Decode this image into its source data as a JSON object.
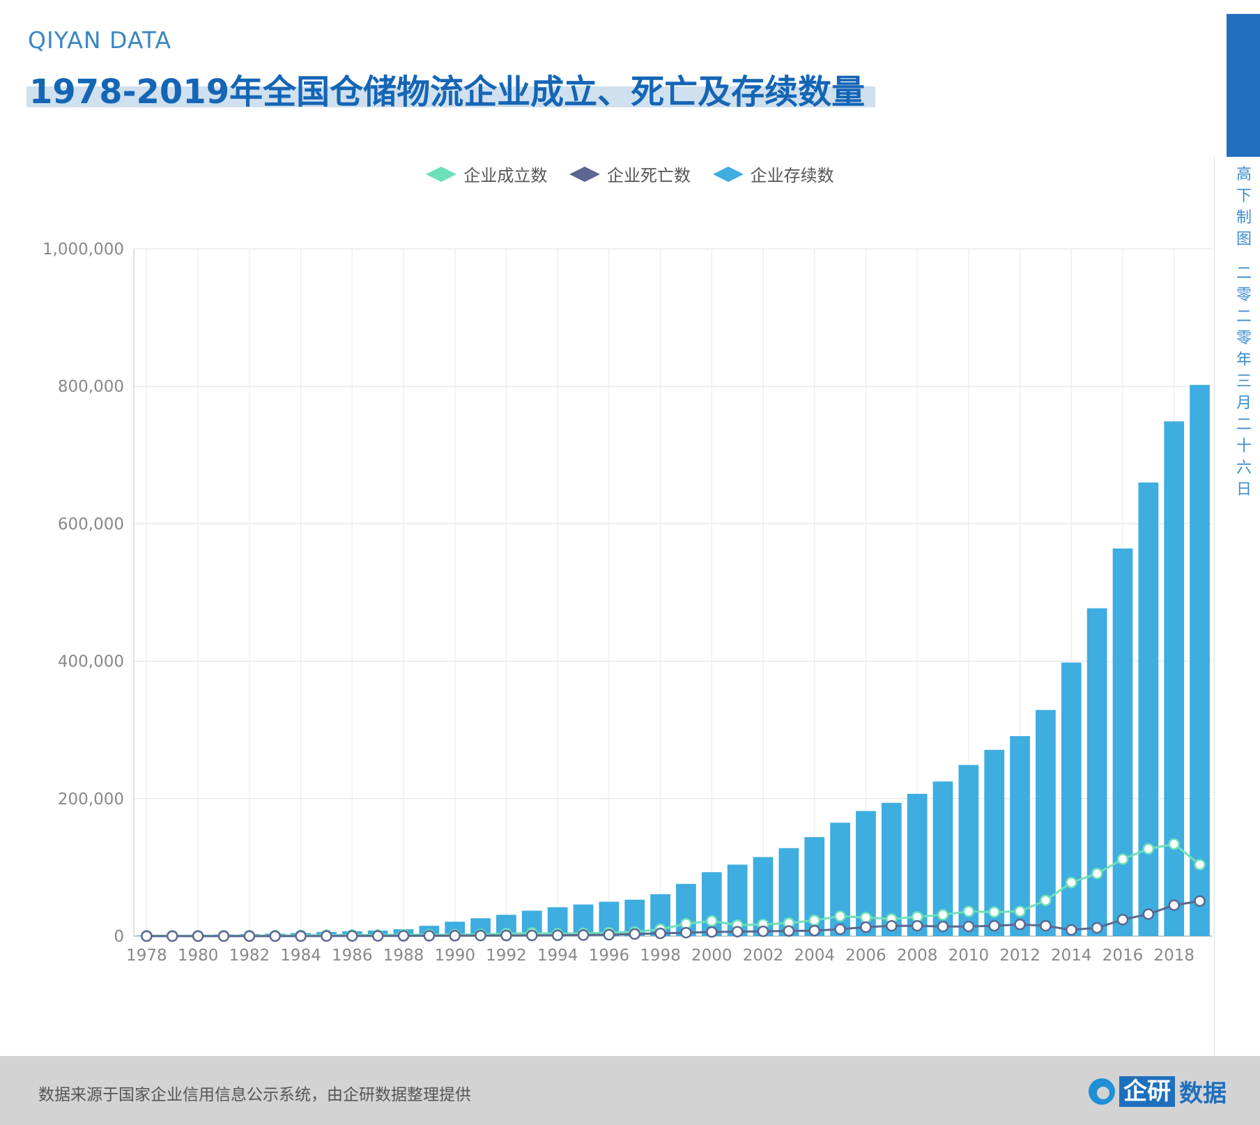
{
  "header": {
    "brand": "QIYAN DATA",
    "title": "1978-2019年全国仓储物流企业成立、死亡及存续数量"
  },
  "side_note": [
    "高",
    "下",
    "制",
    "图",
    "",
    "二",
    "零",
    "二",
    "零",
    "年",
    "三",
    "月",
    "二",
    "十",
    "六",
    "日"
  ],
  "footer": {
    "source": "数据来源于国家企业信用信息公示系统，由企研数据整理提供",
    "logo_box": "企研",
    "logo_text": "数据"
  },
  "colors": {
    "founded": "#6ee0b8",
    "dissolved": "#5b6790",
    "surviving": "#3eade0"
  },
  "chart_data": {
    "type": "bar",
    "title": "1978-2019年全国仓储物流企业成立、死亡及存续数量",
    "xlabel": "",
    "ylabel": "",
    "ylim": [
      0,
      1000000
    ],
    "yticks": [
      0,
      200000,
      400000,
      600000,
      800000,
      1000000
    ],
    "ytick_labels": [
      "0",
      "200,000",
      "400,000",
      "600,000",
      "800,000",
      "1,000,000"
    ],
    "xtick_labels": [
      "1978",
      "1980",
      "1982",
      "1984",
      "1986",
      "1988",
      "1990",
      "1992",
      "1994",
      "1996",
      "1998",
      "2000",
      "2002",
      "2004",
      "2006",
      "2008",
      "2010",
      "2012",
      "2014",
      "2016",
      "2018"
    ],
    "grid": true,
    "legend_position": "top-center",
    "categories": [
      1978,
      1979,
      1980,
      1981,
      1982,
      1983,
      1984,
      1985,
      1986,
      1987,
      1988,
      1989,
      1990,
      1991,
      1992,
      1993,
      1994,
      1995,
      1996,
      1997,
      1998,
      1999,
      2000,
      2001,
      2002,
      2003,
      2004,
      2005,
      2006,
      2007,
      2008,
      2009,
      2010,
      2011,
      2012,
      2013,
      2014,
      2015,
      2016,
      2017,
      2018,
      2019
    ],
    "series": [
      {
        "name": "企业成立数",
        "type": "line",
        "values": [
          500,
          400,
          400,
          500,
          600,
          700,
          1000,
          1500,
          1600,
          1500,
          1900,
          2000,
          2100,
          2400,
          3500,
          4500,
          3500,
          4000,
          5000,
          6000,
          10000,
          18000,
          22000,
          16000,
          17000,
          19000,
          23000,
          29000,
          27000,
          25000,
          28000,
          31000,
          36000,
          35000,
          36000,
          52000,
          78000,
          91000,
          112000,
          127000,
          134000,
          104000
        ]
      },
      {
        "name": "企业死亡数",
        "type": "line",
        "values": [
          0,
          0,
          0,
          0,
          0,
          0,
          0,
          100,
          200,
          300,
          400,
          500,
          600,
          800,
          900,
          1000,
          1200,
          1500,
          2000,
          3000,
          4000,
          5000,
          6000,
          6500,
          7000,
          7500,
          8000,
          10000,
          13000,
          15000,
          15000,
          14000,
          14000,
          15000,
          17000,
          15000,
          9000,
          12000,
          24000,
          32000,
          45000,
          51000
        ]
      },
      {
        "name": "企业存续数",
        "type": "bar",
        "values": [
          1000,
          1400,
          1800,
          2300,
          2900,
          3500,
          4500,
          6000,
          7000,
          8000,
          10000,
          15000,
          21000,
          26000,
          31000,
          37000,
          42000,
          46000,
          50000,
          53000,
          61000,
          76000,
          93000,
          104000,
          115000,
          128000,
          144000,
          165000,
          182000,
          194000,
          207000,
          225000,
          249000,
          271000,
          291000,
          329000,
          398000,
          477000,
          564000,
          660000,
          749000,
          802000
        ]
      }
    ]
  }
}
